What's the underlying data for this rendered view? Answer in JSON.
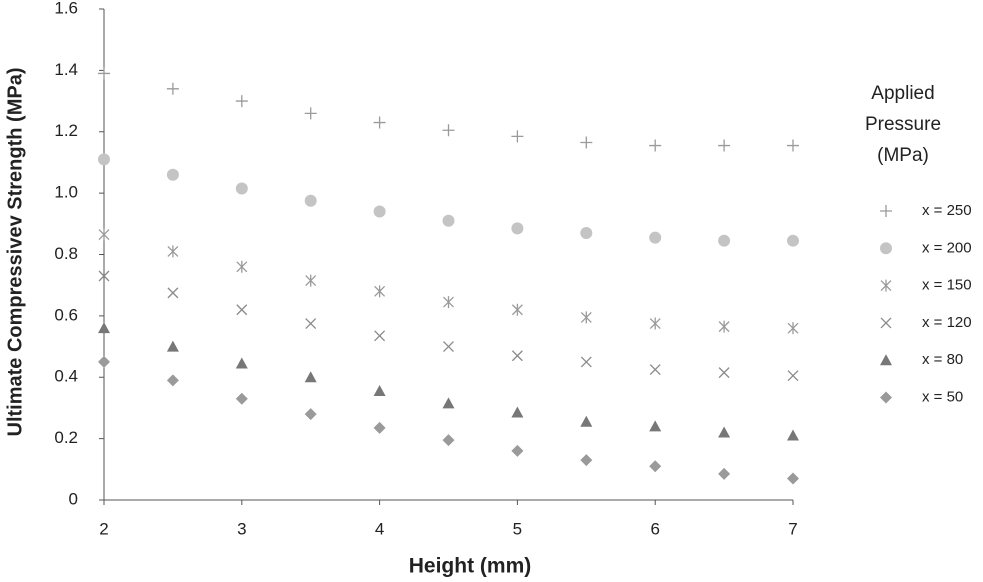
{
  "chart_data": {
    "type": "scatter",
    "x_label": "Height (mm)",
    "y_label": "Ultimate Compressivev Strength (MPa)",
    "legend_title": "Applied Pressure (MPa)",
    "legend": "right",
    "grid": false,
    "x": [
      2,
      2.5,
      3,
      3.5,
      4,
      4.5,
      5,
      5.5,
      6,
      6.5,
      7
    ],
    "xlim": [
      2,
      7
    ],
    "xticks": [
      2,
      3,
      4,
      5,
      6,
      7
    ],
    "ylim": [
      0,
      1.6
    ],
    "yticks": [
      0,
      0.2,
      0.4,
      0.6,
      0.8,
      {
        "value": 1.0,
        "label": "1.0"
      },
      1.2,
      1.4,
      1.6
    ],
    "series": [
      {
        "name": "x = 250",
        "color": "#9a9a9a",
        "marker": "plus",
        "values": [
          1.39,
          1.34,
          1.3,
          1.26,
          1.23,
          1.205,
          1.185,
          1.165,
          1.155,
          1.155,
          1.155
        ]
      },
      {
        "name": "x = 200",
        "color": "#c4c4c4",
        "marker": "circle",
        "values": [
          1.11,
          1.06,
          1.015,
          0.975,
          0.94,
          0.91,
          0.885,
          0.87,
          0.855,
          0.845,
          0.845
        ]
      },
      {
        "name": "x = 150",
        "color": "#9a9a9a",
        "marker": "asterisk",
        "values": [
          0.865,
          0.81,
          0.76,
          0.715,
          0.68,
          0.645,
          0.62,
          0.595,
          0.575,
          0.565,
          0.56
        ]
      },
      {
        "name": "x = 120",
        "color": "#8a8a8a",
        "marker": "cross",
        "values": [
          0.73,
          0.675,
          0.62,
          0.575,
          0.535,
          0.5,
          0.47,
          0.45,
          0.425,
          0.415,
          0.405
        ]
      },
      {
        "name": "x = 80",
        "color": "#777777",
        "marker": "triangle",
        "values": [
          0.56,
          0.5,
          0.445,
          0.4,
          0.355,
          0.315,
          0.285,
          0.255,
          0.24,
          0.22,
          0.21
        ]
      },
      {
        "name": "x = 50",
        "color": "#9a9a9a",
        "marker": "diamond",
        "values": [
          0.45,
          0.39,
          0.33,
          0.28,
          0.235,
          0.195,
          0.16,
          0.13,
          0.11,
          0.085,
          0.07
        ]
      }
    ]
  }
}
